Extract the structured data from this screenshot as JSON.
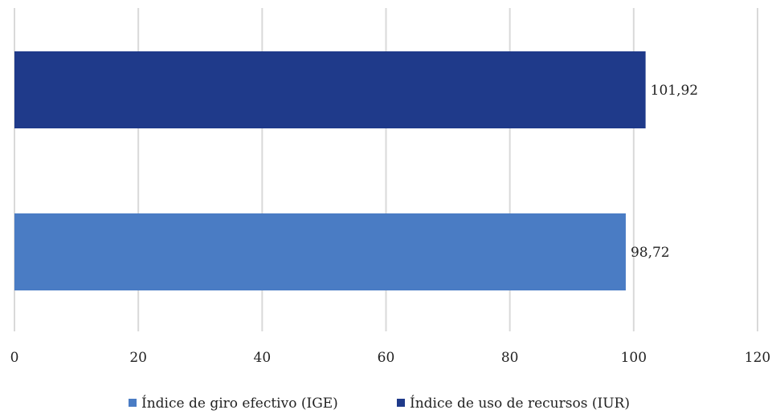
{
  "chart_data": {
    "type": "bar",
    "orientation": "horizontal",
    "series": [
      {
        "name": "Índice de uso de recursos (IUR)",
        "value": 101.92,
        "label": "101,92",
        "color": "#1f3a8a"
      },
      {
        "name": "Índice de giro efectivo (IGE)",
        "value": 98.72,
        "label": "98,72",
        "color": "#4a7cc4"
      }
    ],
    "xlim": [
      0,
      120
    ],
    "xticks": [
      0,
      20,
      40,
      60,
      80,
      100,
      120
    ],
    "xticklabels": [
      "0",
      "20",
      "40",
      "60",
      "80",
      "100",
      "120"
    ],
    "grid": true,
    "legend_position": "bottom",
    "legend": [
      {
        "name": "Índice de giro efectivo (IGE)",
        "color": "#4a7cc4"
      },
      {
        "name": "Índice de uso de recursos (IUR)",
        "color": "#1f3a8a"
      }
    ]
  }
}
